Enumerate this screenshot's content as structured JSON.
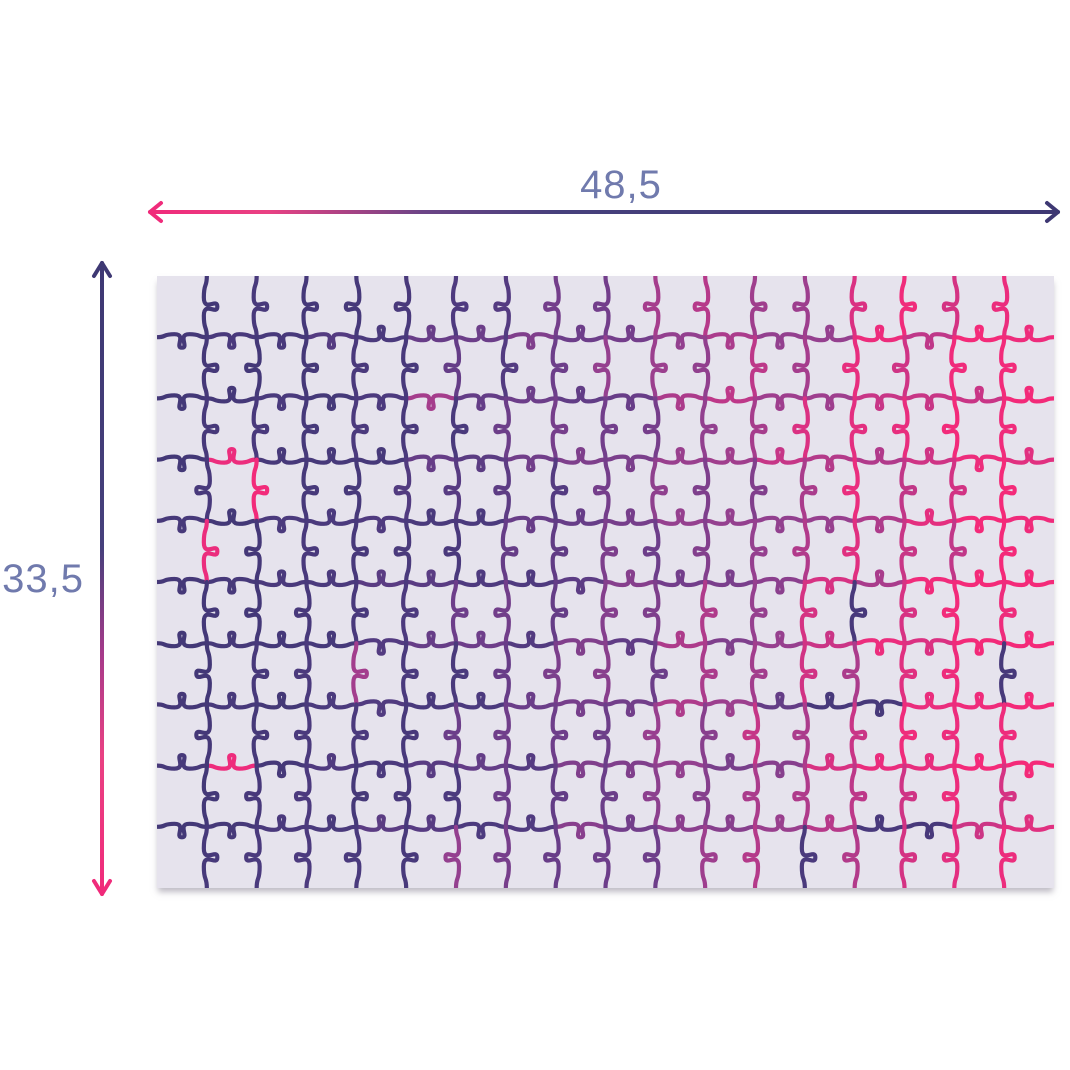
{
  "diagram": {
    "type": "puzzle-size-diagram",
    "width_label": "48,5",
    "height_label": "33,5"
  },
  "colors": {
    "page_bg": "#ffffff",
    "board_bg": "#e6e3ed",
    "label_text": "#707aad",
    "arrow_pink": "#f02a7a",
    "arrow_pink_soft": "#e94183",
    "arrow_magenta": "#a63a8a",
    "arrow_purple_mid": "#6c4486",
    "arrow_indigo_soft": "#46407c",
    "arrow_indigo": "#3e3873",
    "board_shadow": "#7d7589"
  },
  "puzzle": {
    "columns": 18,
    "rows": 10,
    "piece_count": 180,
    "line_width": 4.2,
    "seed": 73,
    "jitter": 0.13,
    "swap_chance": 0.045,
    "color_ramp": [
      {
        "t": 0.0,
        "color": "#433877"
      },
      {
        "t": 0.28,
        "color": "#4c3a7e"
      },
      {
        "t": 0.47,
        "color": "#6e3e8a"
      },
      {
        "t": 0.63,
        "color": "#95408f"
      },
      {
        "t": 0.77,
        "color": "#c23788"
      },
      {
        "t": 0.89,
        "color": "#e92e7e"
      },
      {
        "t": 1.0,
        "color": "#f42a79"
      }
    ]
  }
}
